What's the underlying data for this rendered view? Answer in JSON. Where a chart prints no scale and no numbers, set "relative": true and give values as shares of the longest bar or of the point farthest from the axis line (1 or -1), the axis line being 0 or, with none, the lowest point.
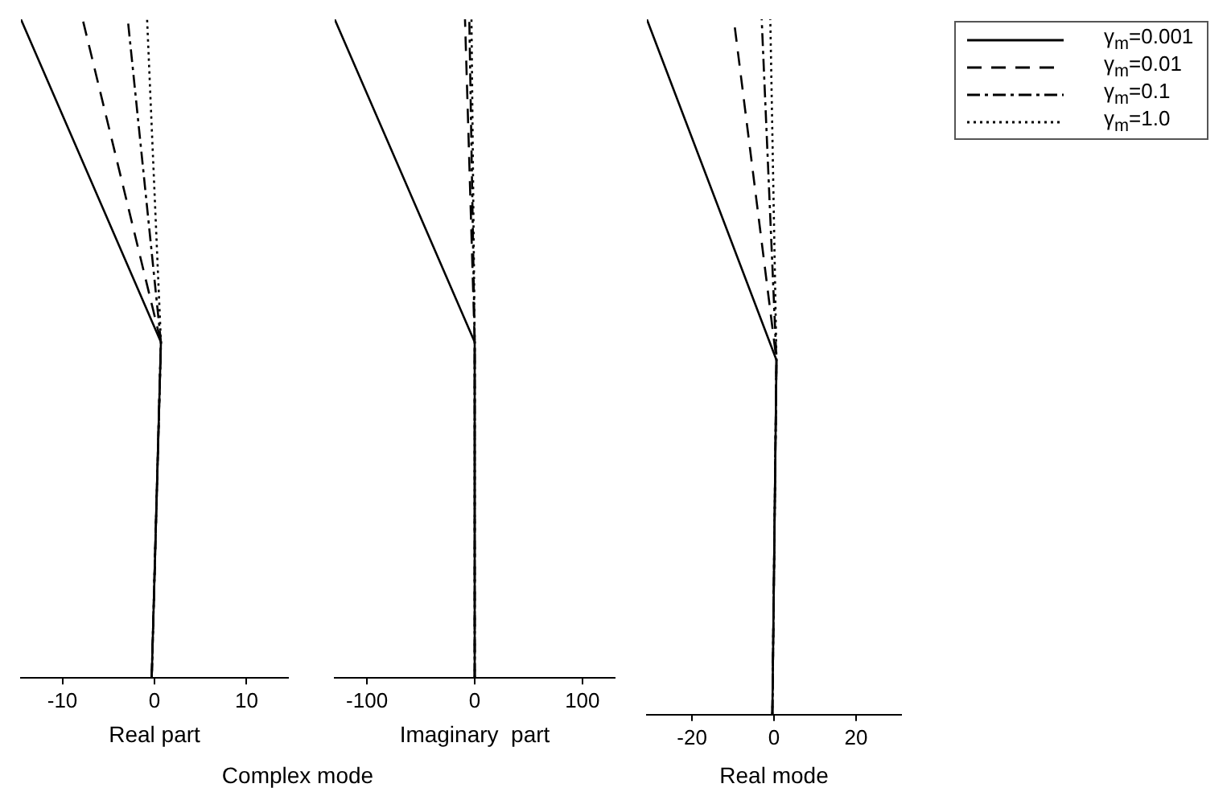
{
  "chart_data": [
    {
      "type": "line",
      "relative": true,
      "xlabel": "Real part",
      "annotations": [
        "Complex mode"
      ],
      "xlim": [
        -14.5,
        14.5
      ],
      "xticks": [
        -10,
        0,
        10
      ],
      "grid": false,
      "legend": false,
      "marker": "none",
      "series": [
        {
          "color": "#000000",
          "line_style": "solid",
          "x": [
            -0.3,
            0.7,
            -14.5
          ],
          "values": [
            0,
            0.51,
            1
          ]
        },
        {
          "color": "#000000",
          "line_style": "dashed",
          "x": [
            -0.3,
            0.7,
            -7.8
          ],
          "values": [
            0,
            0.51,
            1
          ]
        },
        {
          "color": "#000000",
          "line_style": "dashdot",
          "x": [
            -0.3,
            0.7,
            -2.9
          ],
          "values": [
            0,
            0.51,
            1
          ]
        },
        {
          "color": "#000000",
          "line_style": "dotted",
          "x": [
            -0.3,
            0.7,
            -0.8
          ],
          "values": [
            0,
            0.51,
            1
          ]
        }
      ]
    },
    {
      "type": "line",
      "relative": true,
      "xlabel": "Imaginary  part",
      "xlim": [
        -130,
        130
      ],
      "xticks": [
        -100,
        0,
        100
      ],
      "grid": false,
      "legend": false,
      "marker": "none",
      "series": [
        {
          "color": "#000000",
          "line_style": "solid",
          "x": [
            0,
            0,
            -130
          ],
          "values": [
            0,
            0.51,
            1
          ]
        },
        {
          "color": "#000000",
          "line_style": "dashed",
          "x": [
            0,
            0,
            -9
          ],
          "values": [
            0,
            0.51,
            1
          ]
        },
        {
          "color": "#000000",
          "line_style": "dashdot",
          "x": [
            0,
            0,
            -5
          ],
          "values": [
            0,
            0.51,
            1
          ]
        },
        {
          "color": "#000000",
          "line_style": "dotted",
          "x": [
            0,
            0,
            -3
          ],
          "values": [
            0,
            0.51,
            1
          ]
        }
      ]
    },
    {
      "type": "line",
      "relative": true,
      "annotations": [
        "Real  mode"
      ],
      "xlim": [
        -31,
        31
      ],
      "xticks": [
        -20,
        0,
        20
      ],
      "grid": false,
      "legend": "right",
      "marker": "none",
      "series": [
        {
          "name": "γ$_{m}$=0.001",
          "color": "#000000",
          "line_style": "solid",
          "x": [
            -0.4,
            0.6,
            -31
          ],
          "values": [
            0,
            0.51,
            1
          ]
        },
        {
          "name": "γ$_{m}$=0.01",
          "color": "#000000",
          "line_style": "dashed",
          "x": [
            -0.4,
            0.6,
            -9.8
          ],
          "values": [
            0,
            0.51,
            1
          ]
        },
        {
          "name": "γ$_{m}$=0.1",
          "color": "#000000",
          "line_style": "dashdot",
          "x": [
            -0.4,
            0.6,
            -3
          ],
          "values": [
            0,
            0.51,
            1
          ]
        },
        {
          "name": "γ$_{m}$=1.0",
          "color": "#000000",
          "line_style": "dotted",
          "x": [
            -0.4,
            0.6,
            -0.9
          ],
          "values": [
            0,
            0.51,
            1
          ]
        }
      ]
    }
  ]
}
